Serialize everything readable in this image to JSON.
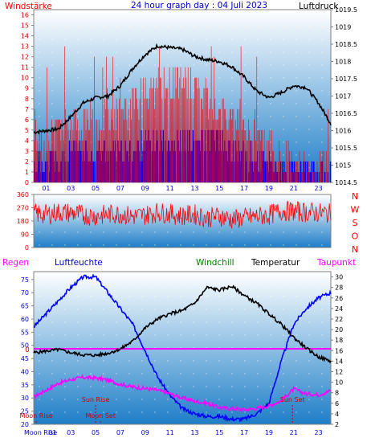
{
  "header": {
    "left_label": "Windstärke",
    "title": "24 hour graph day : 04 Juli 2023",
    "right_label": "Luftdruck"
  },
  "colors": {
    "wind_speed": "#ff0000",
    "wind_gust": "#0000ff",
    "pressure": "#000000",
    "humidity": "#0000ff",
    "temperature": "#000000",
    "dewpoint": "#ff00ff",
    "rain": "#ff00ff",
    "windchill": "#008000",
    "annotation": "#cc0000",
    "axis_label": "#0000cc",
    "bg_top": "#ffffff",
    "bg_bottom": "#1e7ec8"
  },
  "chart_data": [
    {
      "type": "line",
      "name": "wind-pressure",
      "ylabel_left": "Windstärke",
      "ylabel_right": "Luftdruck",
      "ylim_left": [
        0,
        16.5
      ],
      "ylim_right": [
        1014.5,
        1019.5
      ],
      "xlim": [
        0,
        24
      ],
      "x_ticks": [
        "01",
        "03",
        "05",
        "07",
        "09",
        "11",
        "13",
        "15",
        "17",
        "19",
        "21",
        "23"
      ],
      "y_ticks_left": [
        "0",
        "1",
        "2",
        "3",
        "4",
        "5",
        "6",
        "7",
        "8",
        "9",
        "10",
        "11",
        "12",
        "13",
        "14",
        "15",
        "16"
      ],
      "y_ticks_right": [
        "1014.5",
        "1015",
        "1015.5",
        "1016",
        "1016.5",
        "1017",
        "1017.5",
        "1018",
        "1018.5",
        "1019",
        "1019.5"
      ],
      "grid": true,
      "pressure": {
        "x": [
          0,
          1,
          2,
          3,
          4,
          5,
          6,
          7,
          8,
          9,
          10,
          11,
          12,
          13,
          14,
          15,
          16,
          17,
          18,
          19,
          20,
          21,
          22,
          23,
          24
        ],
        "y": [
          1015.95,
          1016.0,
          1016.05,
          1016.4,
          1016.8,
          1016.95,
          1017.0,
          1017.3,
          1017.8,
          1018.2,
          1018.45,
          1018.4,
          1018.35,
          1018.15,
          1018.05,
          1018.0,
          1017.85,
          1017.55,
          1017.15,
          1016.95,
          1017.1,
          1017.3,
          1017.25,
          1016.8,
          1016.2
        ]
      },
      "wind_speed": {
        "x": [
          0,
          1,
          2,
          3,
          4,
          5,
          6,
          7,
          8,
          9,
          10,
          11,
          12,
          13,
          14,
          15,
          16,
          17,
          18,
          19,
          20,
          21,
          22,
          23,
          24
        ],
        "y": [
          5,
          5,
          5,
          5,
          6,
          6,
          6,
          7,
          7,
          8,
          9,
          9,
          10,
          9,
          8,
          7,
          6,
          6,
          5,
          3,
          2,
          2,
          1,
          2,
          1
        ]
      },
      "wind_gust": {
        "x": [
          0,
          1,
          2,
          3,
          4,
          5,
          6,
          7,
          8,
          9,
          10,
          11,
          12,
          13,
          14,
          15,
          16,
          17,
          18,
          19,
          20,
          21,
          22,
          23,
          24
        ],
        "y": [
          2,
          2,
          2,
          3,
          3,
          3,
          3,
          3,
          3,
          4,
          4,
          4,
          4,
          4,
          4,
          4,
          3,
          3,
          2,
          2,
          1,
          1,
          1,
          1,
          1
        ]
      }
    },
    {
      "type": "line",
      "name": "wind-direction",
      "ylim": [
        0,
        360
      ],
      "xlim": [
        0,
        24
      ],
      "y_ticks": [
        "0",
        "90",
        "180",
        "270",
        "360"
      ],
      "side_labels": [
        "N",
        "W",
        "S",
        "O",
        "N"
      ],
      "direction": {
        "x": [
          0,
          1,
          2,
          3,
          4,
          5,
          6,
          7,
          8,
          9,
          10,
          11,
          12,
          13,
          14,
          15,
          16,
          17,
          18,
          19,
          20,
          21,
          22,
          23,
          24
        ],
        "y": [
          230,
          225,
          240,
          235,
          220,
          215,
          225,
          230,
          210,
          220,
          240,
          230,
          215,
          225,
          200,
          215,
          190,
          200,
          210,
          220,
          250,
          245,
          240,
          235,
          230
        ]
      }
    },
    {
      "type": "line",
      "name": "humidity-temperature",
      "legend": [
        "Regen",
        "Luftfeuchte",
        "Windchill",
        "Temperatur",
        "Taupunkt"
      ],
      "ylim_left": [
        20,
        78
      ],
      "ylim_right": [
        2,
        31
      ],
      "xlim": [
        0,
        24
      ],
      "x_ticks": [
        "01",
        "03",
        "05",
        "07",
        "09",
        "11",
        "13",
        "15",
        "17",
        "19",
        "21",
        "23"
      ],
      "x_tick_first": "Moon Rise",
      "y_ticks_left": [
        "20",
        "25",
        "30",
        "35",
        "40",
        "45",
        "50",
        "55",
        "60",
        "65",
        "70",
        "75"
      ],
      "y_ticks_right": [
        "2",
        "4",
        "6",
        "8",
        "10",
        "12",
        "14",
        "16",
        "18",
        "20",
        "22",
        "24",
        "26",
        "28",
        "30"
      ],
      "rain_zero_label": "0",
      "humidity": {
        "x": [
          0,
          1,
          2,
          3,
          4,
          5,
          6,
          7,
          8,
          9,
          10,
          11,
          12,
          13,
          14,
          15,
          16,
          17,
          18,
          19,
          20,
          21,
          22,
          23,
          24
        ],
        "y": [
          57,
          62,
          67,
          72,
          76,
          76,
          70,
          64,
          58,
          48,
          38,
          31,
          26,
          24,
          23,
          23,
          22,
          22,
          24,
          28,
          44,
          58,
          64,
          68,
          70
        ]
      },
      "temperature": {
        "x": [
          0,
          1,
          2,
          3,
          4,
          5,
          6,
          7,
          8,
          9,
          10,
          11,
          12,
          13,
          14,
          15,
          16,
          17,
          18,
          19,
          20,
          21,
          22,
          23,
          24
        ],
        "y": [
          15.6,
          15.9,
          16.2,
          15.6,
          15.2,
          15.1,
          15.5,
          16.3,
          17.8,
          20.3,
          22.0,
          23.0,
          23.6,
          25.0,
          28.0,
          27.5,
          28.2,
          26.5,
          25.0,
          23.0,
          21.0,
          18.5,
          16.5,
          14.8,
          14.0
        ]
      },
      "dewpoint": {
        "x": [
          0,
          1,
          2,
          3,
          4,
          5,
          6,
          7,
          8,
          9,
          10,
          11,
          12,
          13,
          14,
          15,
          16,
          17,
          18,
          19,
          20,
          21,
          22,
          23,
          24
        ],
        "y": [
          7.2,
          8.5,
          9.8,
          10.5,
          10.9,
          10.8,
          10.4,
          9.6,
          9.1,
          8.8,
          8.5,
          7.8,
          7.0,
          6.4,
          6.0,
          5.2,
          5.0,
          4.8,
          5.0,
          5.5,
          6.5,
          8.7,
          7.8,
          7.6,
          8.4
        ]
      },
      "annotations": [
        {
          "label": "Sun Rise",
          "x": 5.0,
          "row": "upper"
        },
        {
          "label": "Sun Set",
          "x": 20.9,
          "row": "upper"
        },
        {
          "label": "Moon Rise",
          "x": 0.2,
          "row": "lower"
        },
        {
          "label": "Moon Set",
          "x": 5.4,
          "row": "lower"
        }
      ]
    }
  ]
}
